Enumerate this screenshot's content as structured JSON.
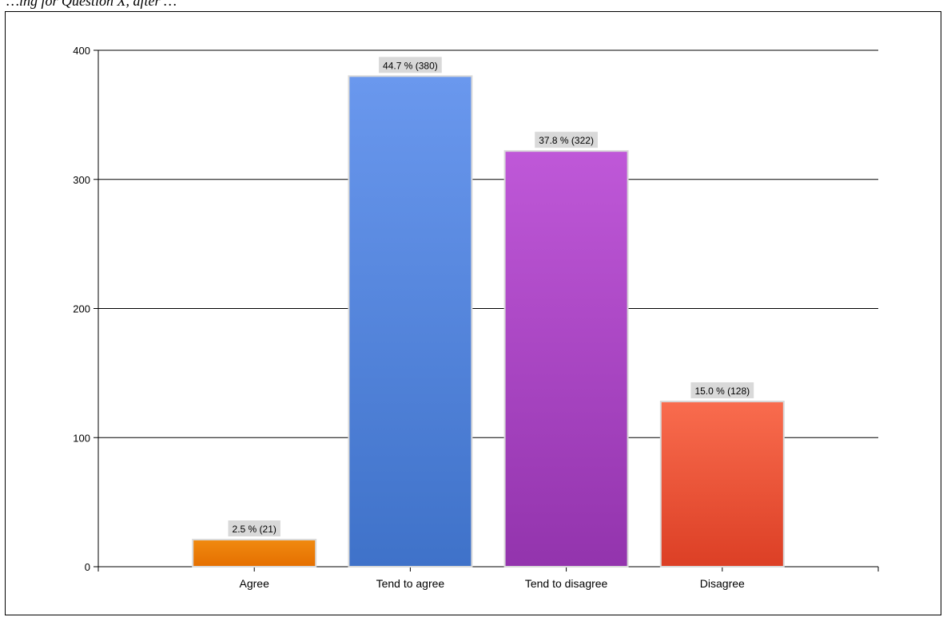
{
  "caption": "…ing for Question X, after …",
  "chart_data": {
    "type": "bar",
    "categories": [
      "Agree",
      "Tend to agree",
      "Tend to disagree",
      "Disagree"
    ],
    "values": [
      21,
      380,
      322,
      128
    ],
    "data_labels": [
      "2.5 % (21)",
      "44.7 % (380)",
      "37.8 % (322)",
      "15.0 % (128)"
    ],
    "colors": [
      {
        "top": "#f08a10",
        "bottom": "#e56f00"
      },
      {
        "top": "#6a98ee",
        "bottom": "#3f72c9"
      },
      {
        "top": "#bf58d8",
        "bottom": "#9334ad"
      },
      {
        "top": "#f96c4e",
        "bottom": "#dc3f25"
      }
    ],
    "yticks": [
      0,
      100,
      200,
      300,
      400
    ],
    "ylim": [
      0,
      400
    ],
    "grid": true,
    "legend": "none",
    "title": "",
    "xlabel": "",
    "ylabel": ""
  }
}
